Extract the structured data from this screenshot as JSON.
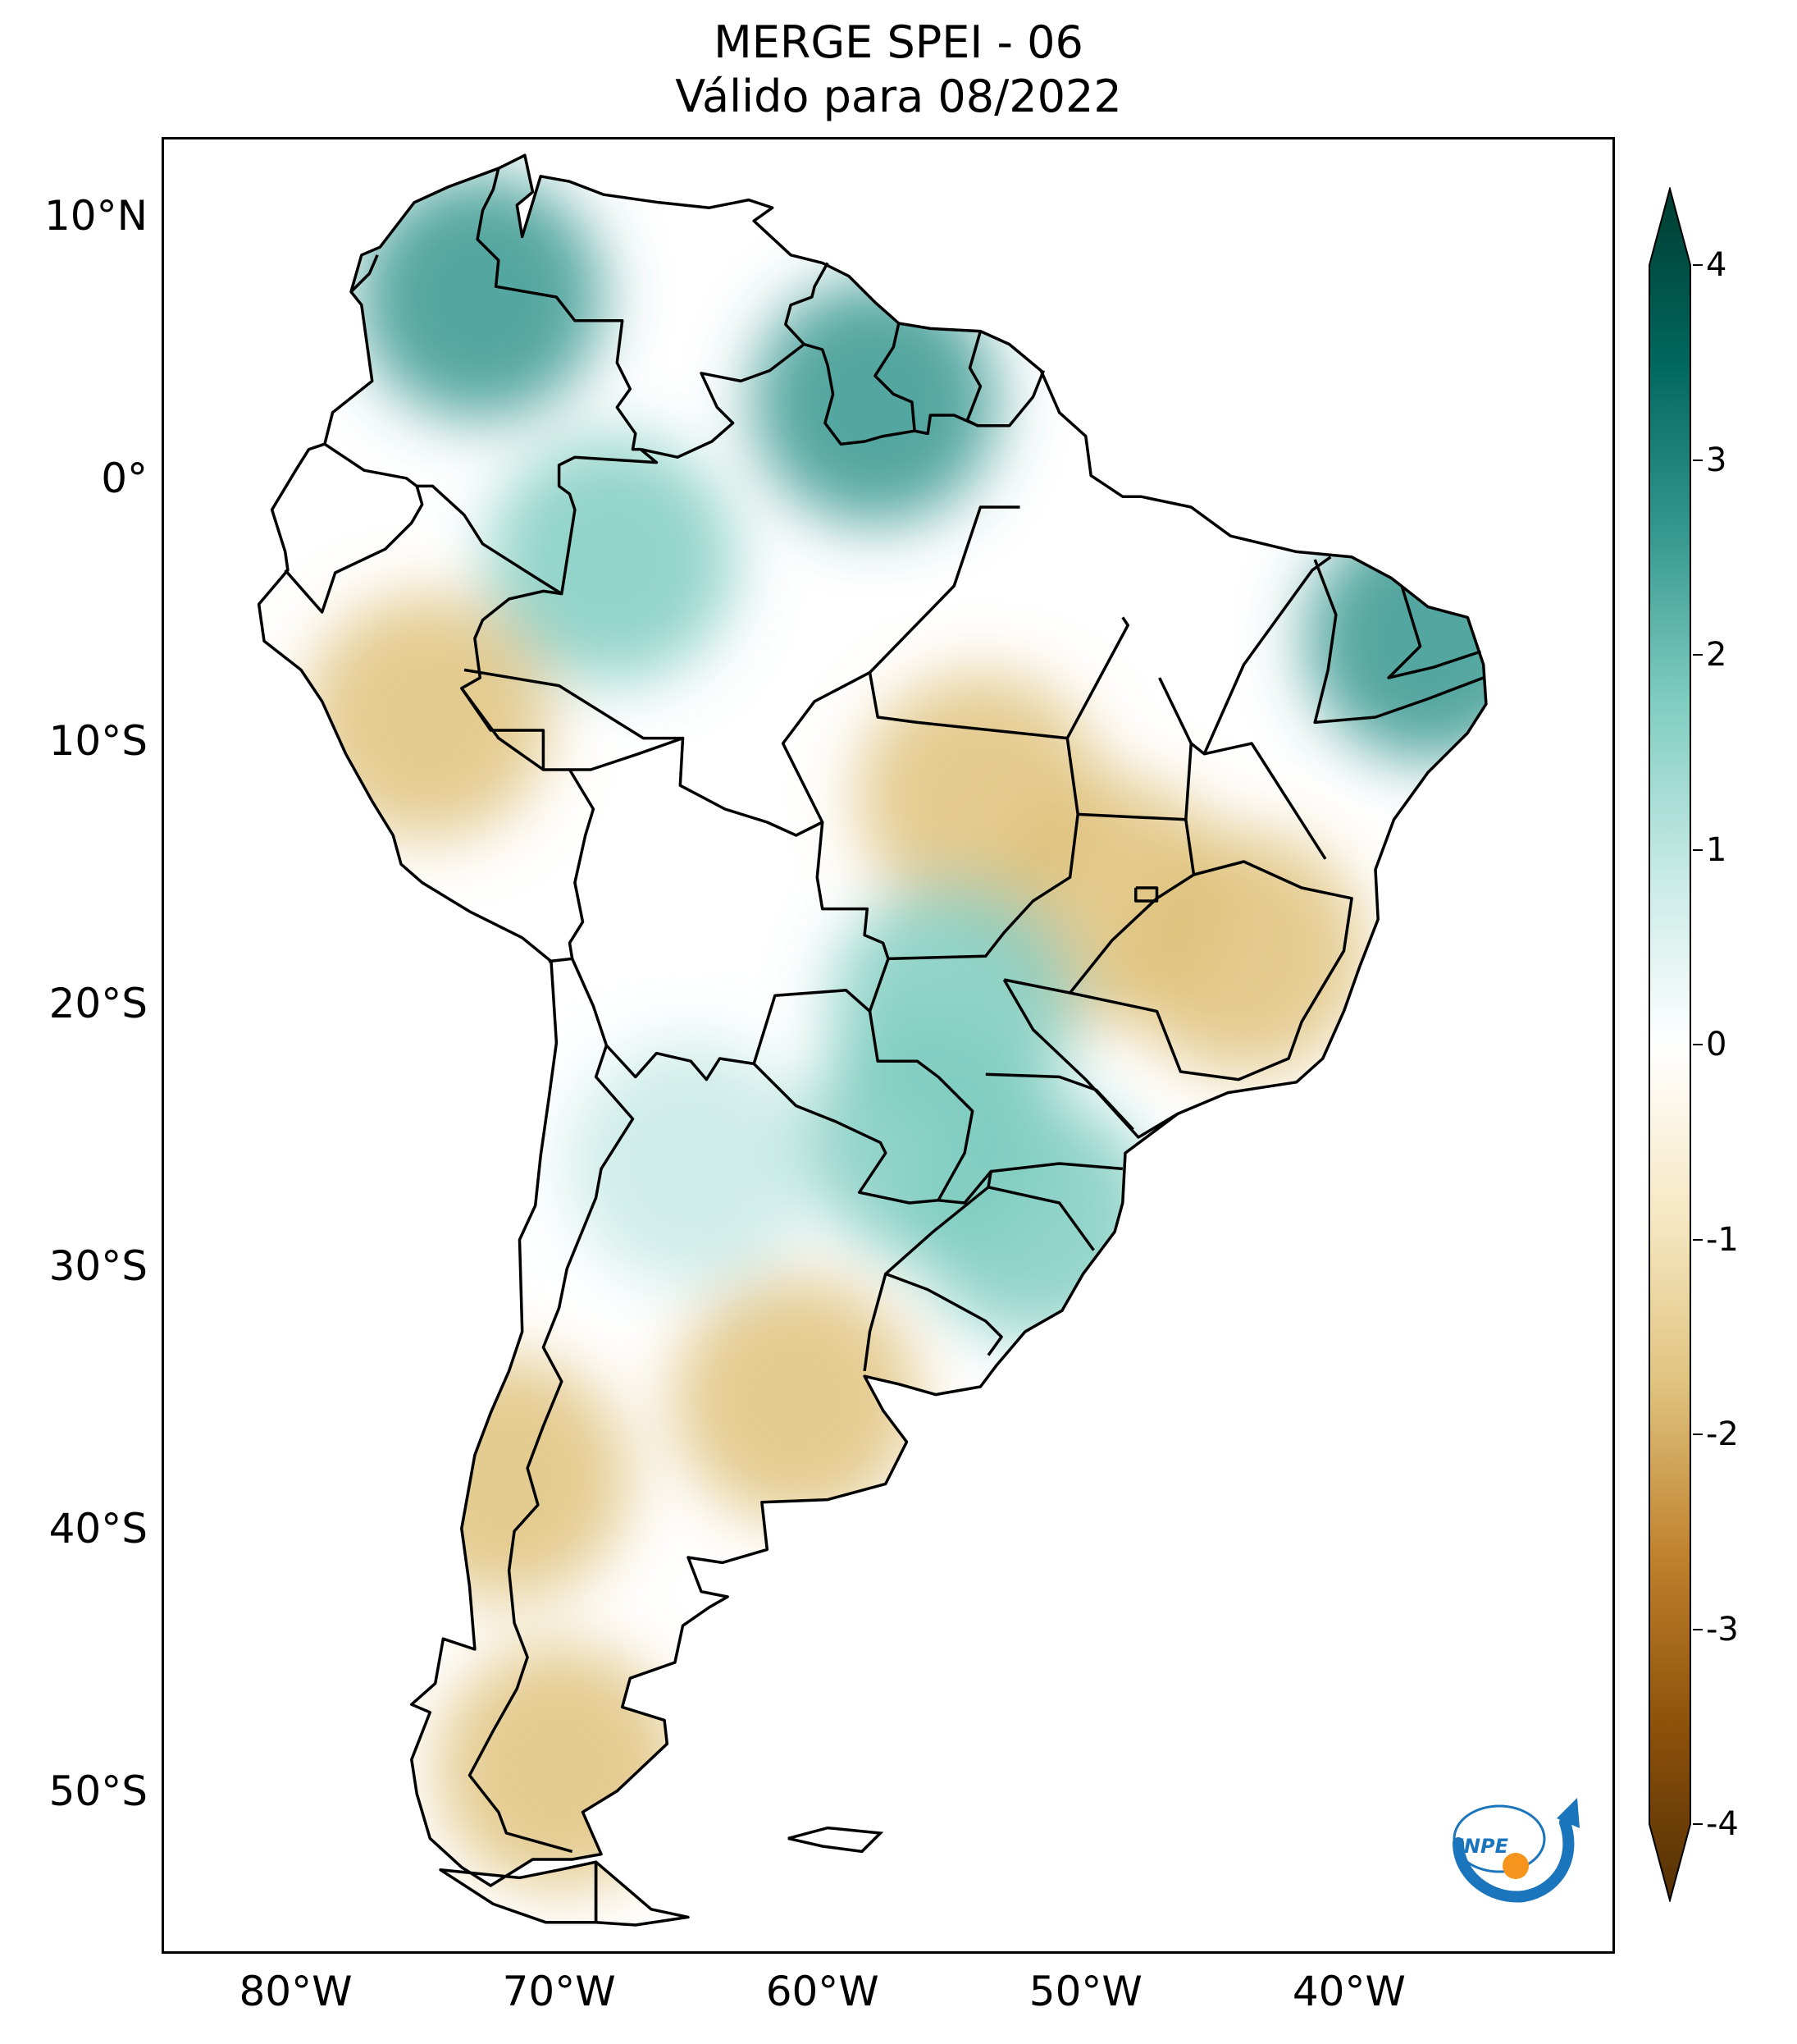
{
  "title": {
    "line1": "MERGE   SPEI - 06",
    "line2": "Válido para 08/2022"
  },
  "map": {
    "region": "South America",
    "extent": {
      "lon_min": -85,
      "lon_max": -30,
      "lat_min": -56,
      "lat_max": 13
    },
    "lat_ticks": [
      {
        "value": 10,
        "label": "10°N"
      },
      {
        "value": 0,
        "label": "0°"
      },
      {
        "value": -10,
        "label": "10°S"
      },
      {
        "value": -20,
        "label": "20°S"
      },
      {
        "value": -30,
        "label": "30°S"
      },
      {
        "value": -40,
        "label": "40°S"
      },
      {
        "value": -50,
        "label": "50°S"
      }
    ],
    "lon_ticks": [
      {
        "value": -80,
        "label": "80°W"
      },
      {
        "value": -70,
        "label": "70°W"
      },
      {
        "value": -60,
        "label": "60°W"
      },
      {
        "value": -50,
        "label": "50°W"
      },
      {
        "value": -40,
        "label": "40°W"
      }
    ],
    "anomaly_regions": [
      {
        "name": "Colombia/Venezuela north",
        "lon": -73,
        "lat": 7,
        "spei": 2.3
      },
      {
        "name": "Guiana Shield",
        "lon": -58,
        "lat": 3,
        "spei": 2.4
      },
      {
        "name": "Amazonas west",
        "lon": -68,
        "lat": -3,
        "spei": 1.5
      },
      {
        "name": "Northeast Brazil coast",
        "lon": -37,
        "lat": -6,
        "spei": 2.0
      },
      {
        "name": "Peru central",
        "lon": -75,
        "lat": -9,
        "spei": -1.4
      },
      {
        "name": "Mato Grosso",
        "lon": -54,
        "lat": -12,
        "spei": -1.3
      },
      {
        "name": "Minas Gerais",
        "lon": -44,
        "lat": -18,
        "spei": -1.6
      },
      {
        "name": "Goias",
        "lon": -49,
        "lat": -16,
        "spei": -1.4
      },
      {
        "name": "Mato Grosso do Sul",
        "lon": -55,
        "lat": -20,
        "spei": 1.3
      },
      {
        "name": "Paraguay east",
        "lon": -56,
        "lat": -25,
        "spei": 1.5
      },
      {
        "name": "Santa Catarina/Rio Grande do Sul",
        "lon": -52,
        "lat": -28,
        "spei": 1.8
      },
      {
        "name": "Argentina north",
        "lon": -65,
        "lat": -26,
        "spei": 0.8
      },
      {
        "name": "Buenos Aires",
        "lon": -61,
        "lat": -35,
        "spei": -1.3
      },
      {
        "name": "Patagonia south",
        "lon": -70,
        "lat": -49,
        "spei": -1.5
      },
      {
        "name": "Chile central/south",
        "lon": -72,
        "lat": -38,
        "spei": -1.6
      }
    ]
  },
  "colorbar": {
    "min": -4,
    "max": 4,
    "ticks": [
      {
        "value": 4,
        "label": "4"
      },
      {
        "value": 3,
        "label": "3"
      },
      {
        "value": 2,
        "label": "2"
      },
      {
        "value": 1,
        "label": "1"
      },
      {
        "value": 0,
        "label": "0"
      },
      {
        "value": -1,
        "label": "-1"
      },
      {
        "value": -2,
        "label": "-2"
      },
      {
        "value": -3,
        "label": "-3"
      },
      {
        "value": -4,
        "label": "-4"
      }
    ],
    "colors": [
      "#543005",
      "#8c510a",
      "#bf812d",
      "#dfc27d",
      "#f6e8c3",
      "#ffffff",
      "#c7eae5",
      "#80cdc1",
      "#35978f",
      "#01665e",
      "#003c30"
    ]
  },
  "logo": {
    "text": "INPE",
    "color_blue": "#1b75bc",
    "color_orange": "#f7941d"
  }
}
